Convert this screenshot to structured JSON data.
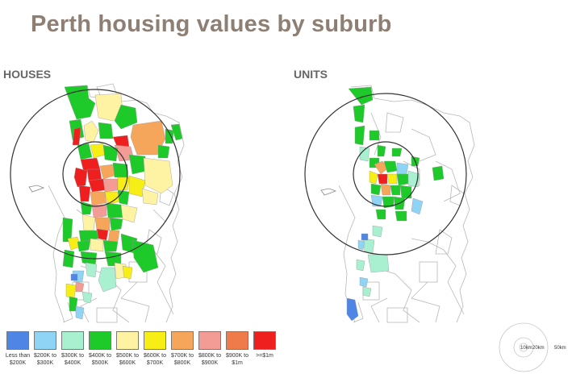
{
  "title": "Perth housing values by suburb",
  "panels": {
    "houses": {
      "label": "HOUSES"
    },
    "units": {
      "label": "UNITS"
    }
  },
  "legend": [
    {
      "text": "Less than $200K",
      "color": "#4f86e6"
    },
    {
      "text": "$200K to $300K",
      "color": "#8fd3f5"
    },
    {
      "text": "$300K to $400K",
      "color": "#a9f0d1"
    },
    {
      "text": "$400K to $500K",
      "color": "#1ec92a"
    },
    {
      "text": "$500K to $600K",
      "color": "#fdf3a3"
    },
    {
      "text": "$600K to $700K",
      "color": "#f7ee16"
    },
    {
      "text": "$700K to $800K",
      "color": "#f5a65b"
    },
    {
      "text": "$800K to $900K",
      "color": "#f39b95"
    },
    {
      "text": "$900K to $1m",
      "color": "#ef7a4a"
    },
    {
      "text": ">=$1m",
      "color": "#ef1f1f"
    }
  ],
  "scale": {
    "labels": [
      "10km",
      "20km",
      "50km"
    ]
  },
  "colors": {
    "title": "#8e7f74",
    "ring": "#333333",
    "boundary": "#b8b8b8"
  }
}
